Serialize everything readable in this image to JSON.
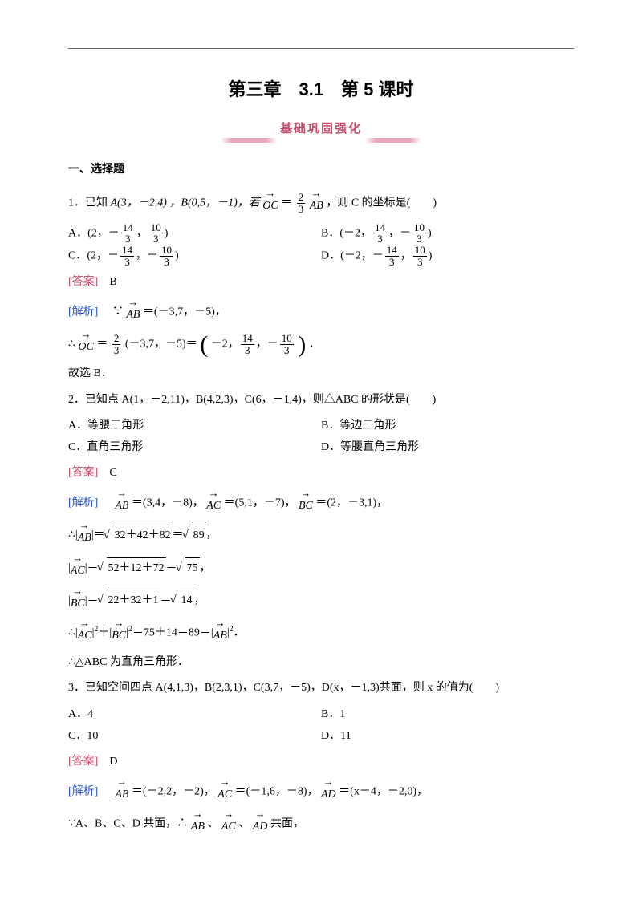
{
  "colors": {
    "accent": "#c84a6a",
    "link": "#2a55cc",
    "text": "#000000",
    "bg": "#ffffff",
    "ribbon": "#e8a5bb"
  },
  "title": "第三章　3.1　第 5 课时",
  "subtitle": "基础巩固强化",
  "section_head": "一、选择题",
  "q1": {
    "stem_a": "1．已知 ",
    "A_pt": "A(3，－2,4)",
    "B_pt": "，B(0,5，－1)，若",
    "eqL": "OC",
    "eq_mid": "＝",
    "frac_num": "2",
    "frac_den": "3",
    "eqR": "AB",
    "tail": "，则 C 的坐标是(　　)",
    "choices": {
      "A_pre": "A．(2，－",
      "A_f1n": "14",
      "A_f1d": "3",
      "A_mid": "，",
      "A_f2n": "10",
      "A_f2d": "3",
      "A_post": ")",
      "B_pre": "B．(－2，",
      "B_f1n": "14",
      "B_f1d": "3",
      "B_mid": "，－",
      "B_f2n": "10",
      "B_f2d": "3",
      "B_post": ")",
      "C_pre": "C．(2，－",
      "C_f1n": "14",
      "C_f1d": "3",
      "C_mid": "，－",
      "C_f2n": "10",
      "C_f2d": "3",
      "C_post": ")",
      "D_pre": "D．(－2，－",
      "D_f1n": "14",
      "D_f1d": "3",
      "D_mid": "，",
      "D_f2n": "10",
      "D_f2d": "3",
      "D_post": ")"
    },
    "answer_label": "[答案]",
    "answer": "　B",
    "analysis_label": "[解析]",
    "line1a": "　∵",
    "line1_vec": "AB",
    "line1b": "＝(－3,7，－5)，",
    "line2a": "∴",
    "line2_vec": "OC",
    "line2b": "＝",
    "line2_fn": "2",
    "line2_fd": "3",
    "line2c": "(－3,7，－5)＝",
    "line2_inner_a": "－2，",
    "line2_in_f1n": "14",
    "line2_in_f1d": "3",
    "line2_inner_b": "，－",
    "line2_in_f2n": "10",
    "line2_in_f2d": "3",
    "line2d": "．",
    "line3": "故选 B．"
  },
  "q2": {
    "stem": "2．已知点 A(1，－2,11)，B(4,2,3)，C(6，－1,4)，则△ABC 的形状是(　　)",
    "choices": {
      "A": "A．等腰三角形",
      "B": "B．等边三角形",
      "C": "C．直角三角形",
      "D": "D．等腰直角三角形"
    },
    "answer_label": "[答案]",
    "answer": "　C",
    "analysis_label": "[解析]",
    "l1a": "　",
    "l1vAB": "AB",
    "l1b": "＝(3,4，－8)，",
    "l1vAC": "AC",
    "l1c": "＝(5,1，－7)，",
    "l1vBC": "BC",
    "l1d": "＝(2，－3,1)，",
    "l2a": "∴|",
    "l2v": "AB",
    "l2b": "|＝",
    "l2rad": "32＋42＋82",
    "l2c": "＝",
    "l2rad2": "89",
    "l2d": "，",
    "l3a": "|",
    "l3v": "AC",
    "l3b": "|＝",
    "l3rad": "52＋12＋72",
    "l3c": "＝",
    "l3rad2": "75",
    "l3d": "，",
    "l4a": "|",
    "l4v": "BC",
    "l4b": "|＝",
    "l4rad": "22＋32＋1",
    "l4c": "＝",
    "l4rad2": "14",
    "l4d": "，",
    "l5a": "∴|",
    "l5v1": "AC",
    "l5b": "|",
    "l5sq1": "2",
    "l5c": "＋|",
    "l5v2": "BC",
    "l5d": "|",
    "l5sq2": "2",
    "l5e": "＝75＋14＝89＝|",
    "l5v3": "AB",
    "l5f": "|",
    "l5sq3": "2",
    "l5g": "．",
    "l6": "∴△ABC 为直角三角形．"
  },
  "q3": {
    "stem": "3．已知空间四点 A(4,1,3)，B(2,3,1)，C(3,7，－5)，D(x，－1,3)共面，则 x 的值为(　　)",
    "choices": {
      "A": "A．4",
      "B": "B．1",
      "C": "C．10",
      "D": "D．11"
    },
    "answer_label": "[答案]",
    "answer": "　D",
    "analysis_label": "[解析]",
    "l1a": "　",
    "l1vAB": "AB",
    "l1b": "＝(－2,2，－2)，",
    "l1vAC": "AC",
    "l1c": "＝(－1,6，－8)，",
    "l1vAD": "AD",
    "l1d": "＝(x－4，－2,0)，",
    "l2a": "∵A、B、C、D 共面，∴",
    "l2v1": "AB",
    "l2b": "、",
    "l2v2": "AC",
    "l2c": "、",
    "l2v3": "AD",
    "l2d": "共面，"
  }
}
